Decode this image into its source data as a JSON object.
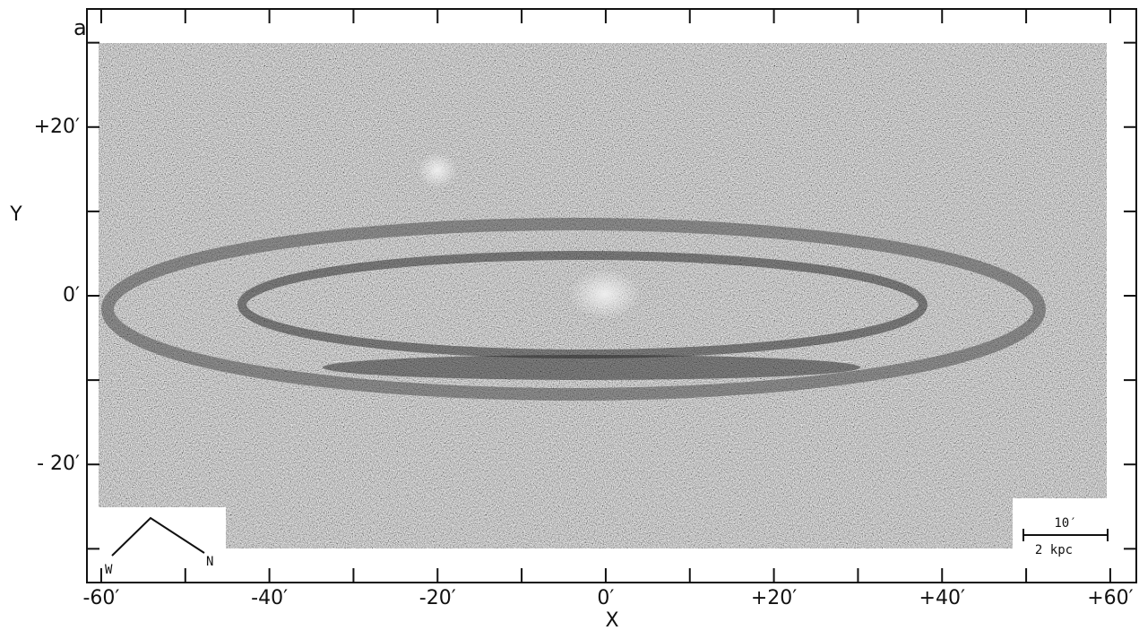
{
  "chart_data": {
    "type": "image",
    "panel_label": "a",
    "x_label": "X",
    "y_label": "Y",
    "xlim": [
      -61.7,
      63.1
    ],
    "ylim": [
      -34,
      34
    ],
    "xticks": [
      {
        "value": -60,
        "label": "-60′"
      },
      {
        "value": -40,
        "label": "-40′"
      },
      {
        "value": -20,
        "label": "-20′"
      },
      {
        "value": 0,
        "label": "0′"
      },
      {
        "value": 20,
        "label": "+20′"
      },
      {
        "value": 40,
        "label": "+40′"
      },
      {
        "value": 60,
        "label": "+60′"
      }
    ],
    "xminorticks": [
      -50,
      -30,
      -10,
      10,
      30,
      50
    ],
    "yticks": [
      {
        "value": 20,
        "label": "+20′"
      },
      {
        "value": 0,
        "label": "0′"
      },
      {
        "value": -20,
        "label": "- 20′"
      }
    ],
    "yminorticks": [
      30,
      10,
      -10,
      -30
    ],
    "scale_bar": {
      "angle": "10′",
      "length": "2 kpc"
    },
    "compass": {
      "west": "W",
      "north": "N"
    }
  }
}
